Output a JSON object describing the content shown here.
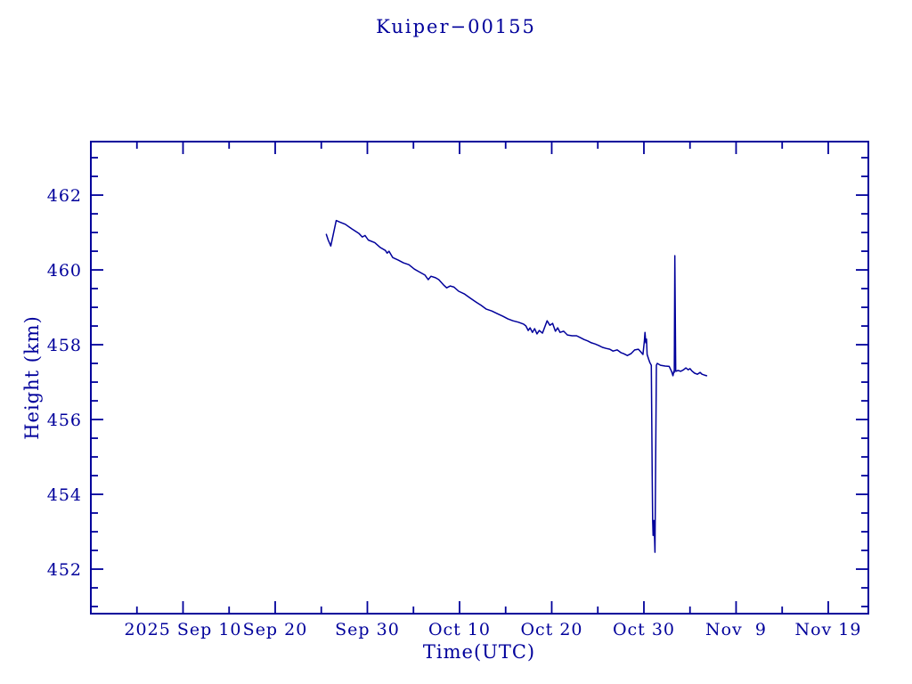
{
  "title": "Kuiper−00155",
  "chart_data": {
    "type": "line",
    "title": "Kuiper−00155",
    "xlabel": "Time(UTC)",
    "ylabel": "Height (km)",
    "x_unit": "days since 2025 Sep 10 00:00 UTC",
    "xlim": [
      -10,
      74.35
    ],
    "ylim": [
      450.81,
      463.43
    ],
    "grid": false,
    "legend": "none",
    "background": "#ffffff",
    "axis_color": "#00009b",
    "line_color": "#00009b",
    "x_major_ticks": [
      {
        "t": 0,
        "label": "2025 Sep 10"
      },
      {
        "t": 10,
        "label": "Sep 20"
      },
      {
        "t": 20,
        "label": "Sep 30"
      },
      {
        "t": 30,
        "label": "Oct 10"
      },
      {
        "t": 40,
        "label": "Oct 20"
      },
      {
        "t": 50,
        "label": "Oct 30"
      },
      {
        "t": 60,
        "label": "Nov  9"
      },
      {
        "t": 70,
        "label": "Nov 19"
      }
    ],
    "x_minor_ticks": [
      -5,
      5,
      15,
      25,
      35,
      45,
      55,
      65
    ],
    "y_major_ticks": [
      452,
      454,
      456,
      458,
      460,
      462
    ],
    "y_minor_ticks": [
      451,
      451.5,
      452.5,
      453,
      453.5,
      454.5,
      455,
      455.5,
      456.5,
      457,
      457.5,
      458.5,
      459,
      459.5,
      460.5,
      461,
      461.5,
      462.5,
      463
    ],
    "series": [
      {
        "name": "height",
        "points": [
          [
            15.55,
            460.95
          ],
          [
            15.75,
            460.8
          ],
          [
            16.03,
            460.64
          ],
          [
            16.3,
            460.95
          ],
          [
            16.62,
            461.32
          ],
          [
            17.0,
            461.28
          ],
          [
            17.6,
            461.22
          ],
          [
            18.3,
            461.1
          ],
          [
            19.1,
            460.97
          ],
          [
            19.45,
            460.88
          ],
          [
            19.75,
            460.92
          ],
          [
            20.1,
            460.8
          ],
          [
            20.8,
            460.73
          ],
          [
            21.4,
            460.6
          ],
          [
            21.95,
            460.52
          ],
          [
            22.15,
            460.45
          ],
          [
            22.35,
            460.5
          ],
          [
            22.75,
            460.33
          ],
          [
            23.35,
            460.26
          ],
          [
            23.9,
            460.19
          ],
          [
            24.5,
            460.14
          ],
          [
            25.1,
            460.02
          ],
          [
            25.6,
            459.95
          ],
          [
            26.25,
            459.86
          ],
          [
            26.6,
            459.74
          ],
          [
            26.9,
            459.83
          ],
          [
            27.4,
            459.79
          ],
          [
            27.75,
            459.74
          ],
          [
            28.25,
            459.6
          ],
          [
            28.6,
            459.52
          ],
          [
            29.0,
            459.57
          ],
          [
            29.4,
            459.54
          ],
          [
            29.9,
            459.43
          ],
          [
            30.5,
            459.36
          ],
          [
            31.2,
            459.24
          ],
          [
            31.8,
            459.14
          ],
          [
            32.35,
            459.05
          ],
          [
            32.9,
            458.95
          ],
          [
            33.5,
            458.9
          ],
          [
            34.1,
            458.83
          ],
          [
            34.7,
            458.76
          ],
          [
            35.25,
            458.69
          ],
          [
            35.8,
            458.64
          ],
          [
            36.4,
            458.6
          ],
          [
            36.95,
            458.55
          ],
          [
            37.2,
            458.5
          ],
          [
            37.45,
            458.38
          ],
          [
            37.65,
            458.45
          ],
          [
            37.9,
            458.33
          ],
          [
            38.15,
            458.43
          ],
          [
            38.4,
            458.29
          ],
          [
            38.65,
            458.38
          ],
          [
            39.0,
            458.31
          ],
          [
            39.5,
            458.64
          ],
          [
            39.8,
            458.52
          ],
          [
            40.1,
            458.57
          ],
          [
            40.4,
            458.36
          ],
          [
            40.65,
            458.45
          ],
          [
            40.9,
            458.33
          ],
          [
            41.3,
            458.36
          ],
          [
            41.7,
            458.26
          ],
          [
            42.2,
            458.24
          ],
          [
            42.7,
            458.24
          ],
          [
            43.1,
            458.19
          ],
          [
            43.5,
            458.14
          ],
          [
            43.9,
            458.1
          ],
          [
            44.3,
            458.05
          ],
          [
            44.7,
            458.02
          ],
          [
            45.1,
            457.98
          ],
          [
            45.5,
            457.93
          ],
          [
            45.9,
            457.9
          ],
          [
            46.3,
            457.88
          ],
          [
            46.65,
            457.83
          ],
          [
            47.1,
            457.86
          ],
          [
            47.5,
            457.79
          ],
          [
            47.8,
            457.76
          ],
          [
            48.2,
            457.71
          ],
          [
            48.6,
            457.76
          ],
          [
            49.0,
            457.86
          ],
          [
            49.4,
            457.88
          ],
          [
            49.65,
            457.81
          ],
          [
            49.9,
            457.74
          ],
          [
            50.05,
            458.1
          ],
          [
            50.12,
            458.33
          ],
          [
            50.2,
            458.05
          ],
          [
            50.28,
            458.15
          ],
          [
            50.35,
            457.74
          ],
          [
            50.5,
            457.62
          ],
          [
            50.65,
            457.52
          ],
          [
            50.8,
            457.45
          ],
          [
            50.9,
            454.5
          ],
          [
            50.95,
            453.33
          ],
          [
            51.0,
            452.9
          ],
          [
            51.08,
            453.3
          ],
          [
            51.15,
            452.86
          ],
          [
            51.2,
            452.45
          ],
          [
            51.35,
            457.45
          ],
          [
            51.45,
            457.5
          ],
          [
            51.8,
            457.45
          ],
          [
            52.3,
            457.43
          ],
          [
            52.75,
            457.42
          ],
          [
            53.0,
            457.29
          ],
          [
            53.15,
            457.17
          ],
          [
            53.25,
            457.29
          ],
          [
            53.3,
            457.26
          ],
          [
            53.35,
            460.38
          ],
          [
            53.45,
            457.29
          ],
          [
            53.7,
            457.31
          ],
          [
            54.0,
            457.29
          ],
          [
            54.3,
            457.33
          ],
          [
            54.55,
            457.38
          ],
          [
            54.8,
            457.33
          ],
          [
            55.0,
            457.36
          ],
          [
            55.2,
            457.3
          ],
          [
            55.5,
            457.24
          ],
          [
            55.8,
            457.21
          ],
          [
            56.1,
            457.26
          ],
          [
            56.3,
            457.21
          ],
          [
            56.55,
            457.19
          ],
          [
            56.8,
            457.17
          ]
        ]
      }
    ]
  }
}
